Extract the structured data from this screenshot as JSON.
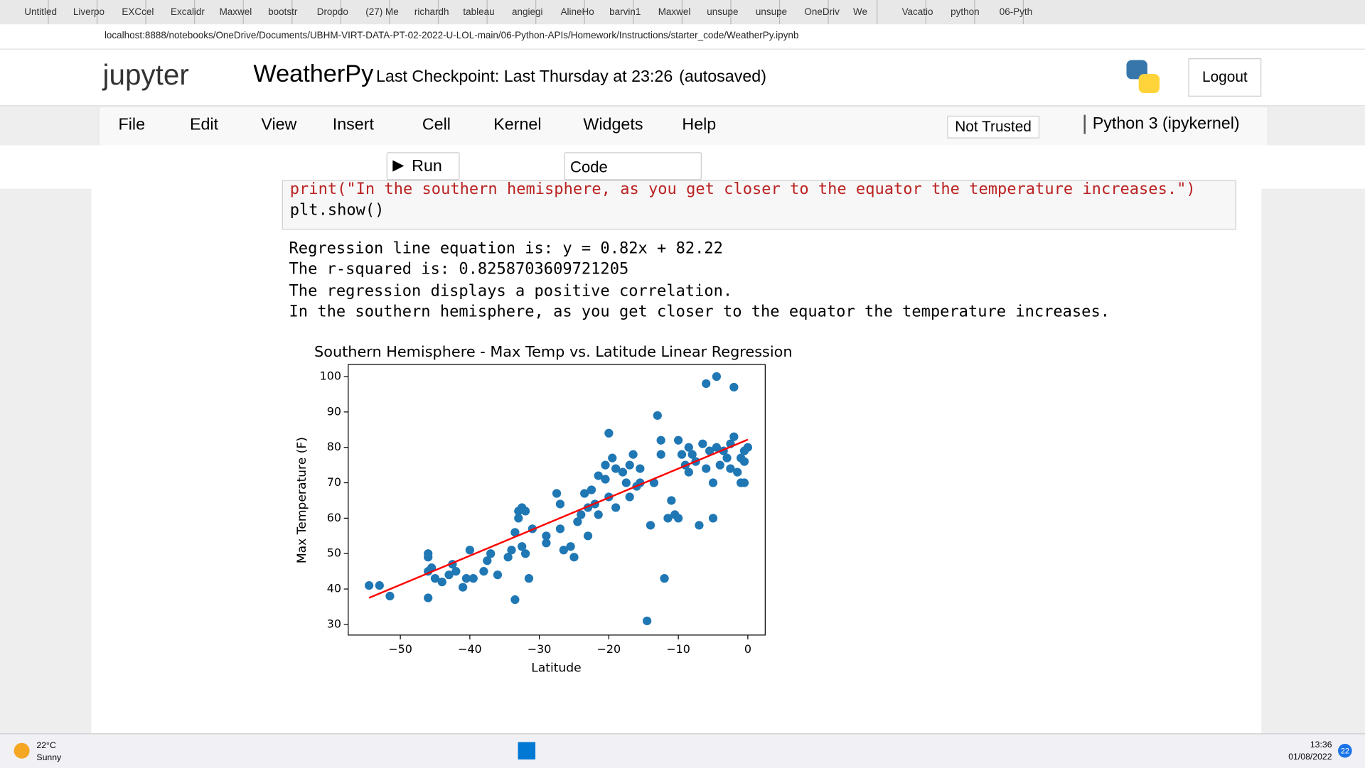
{
  "browser": {
    "tabs": [
      "Untitled",
      "Liverpo",
      "EXCcel",
      "Excalidr",
      "Maxwel",
      "bootstr",
      "Dropdo",
      "(27) Me",
      "richardh",
      "tableau",
      "angiegi",
      "AlineHo",
      "barvin1",
      "Maxwel",
      "unsupe",
      "unsupe",
      "OneDriv",
      "We",
      "Vacatio",
      "python",
      "06-Pyth"
    ],
    "url": "localhost:8888/notebooks/OneDrive/Documents/UBHM-VIRT-DATA-PT-02-2022-U-LOL-main/06-Python-APIs/Homework/Instructions/starter_code/WeatherPy.ipynb"
  },
  "jupyter": {
    "logo": "jupyter",
    "notebook": "WeatherPy",
    "checkpoint": "Last Checkpoint: Last Thursday at 23:26",
    "autosaved": "(autosaved)",
    "logout": "Logout",
    "menu": [
      "File",
      "Edit",
      "View",
      "Insert",
      "Cell",
      "Kernel",
      "Widgets",
      "Help"
    ],
    "trust": "Not Trusted",
    "kernel": "Python 3 (ipykernel)",
    "run": "Run",
    "cell_type": "Code"
  },
  "cell": {
    "code": [
      "print(\"In the southern hemisphere, as you get closer to the equator the temperature increases.\")",
      "plt.show()"
    ],
    "output": [
      "Regression line equation is: y = 0.82x + 82.22",
      "The r-squared is: 0.8258703609721205",
      "The regression displays a positive correlation.",
      "In the southern hemisphere, as you get closer to the equator the temperature increases."
    ]
  },
  "chart_data": {
    "type": "scatter",
    "title": "Southern Hemisphere - Max Temp vs. Latitude Linear Regression",
    "x_label": "Latitude",
    "y_label": "Max Temperature (F)",
    "color": "#1f77b4",
    "x": [
      -54.5,
      -53,
      -51.5,
      -46,
      -46,
      -46,
      -45.5,
      -45,
      -46,
      -44,
      -43,
      -42.5,
      -42,
      -41,
      -40.5,
      -40,
      -39.5,
      -38,
      -37.5,
      -37,
      -36,
      -34.5,
      -34,
      -33.5,
      -33.5,
      -33,
      -33,
      -32.5,
      -32,
      -32.5,
      -32,
      -31.5,
      -31,
      -29,
      -29,
      -27.5,
      -27,
      -27,
      -26.5,
      -25.5,
      -25,
      -24.5,
      -24,
      -23.5,
      -23,
      -23,
      -22.5,
      -22,
      -21.5,
      -21.5,
      -20.5,
      -20.5,
      -20,
      -20,
      -19.5,
      -19,
      -19,
      -18,
      -17.5,
      -17,
      -17,
      -16.5,
      -16,
      -15.5,
      -15.5,
      -14.5,
      -14,
      -13.5,
      -13,
      -12.5,
      -12.5,
      -12,
      -11.5,
      -11,
      -10.5,
      -10,
      -10,
      -9.5,
      -9,
      -8.5,
      -8.5,
      -8,
      -7.5,
      -7,
      -6.5,
      -6,
      -6,
      -5.5,
      -5,
      -5,
      -4.5,
      -4.5,
      -4,
      -3.5,
      -3,
      -2.5,
      -2.5,
      -2,
      -2,
      -1.5,
      -1,
      -1,
      -0.5,
      -0.5,
      0,
      -0.5
    ],
    "values": [
      41,
      41,
      38,
      45,
      49,
      50,
      46,
      43,
      37.5,
      42,
      44,
      47,
      45,
      40.5,
      43,
      51,
      43,
      45,
      48,
      50,
      44,
      49,
      51,
      37,
      56,
      60,
      62,
      63,
      62,
      52,
      50,
      43,
      57,
      55,
      53,
      67,
      64,
      57,
      51,
      52,
      49,
      59,
      61,
      67,
      63,
      55,
      68,
      64,
      61,
      72,
      75,
      71,
      66,
      84,
      77,
      74,
      63,
      73,
      70,
      75,
      66,
      78,
      69,
      70,
      74,
      31,
      58,
      70,
      89,
      82,
      78,
      43,
      60,
      65,
      61,
      60,
      82,
      78,
      75,
      73,
      80,
      78,
      76,
      58,
      81,
      74,
      98,
      79,
      70,
      60,
      100,
      80,
      75,
      79,
      77,
      81,
      74,
      83,
      97,
      73,
      77,
      70,
      76,
      70,
      80,
      79
    ],
    "fit_line": {
      "x": [
        -54.5,
        0
      ],
      "values": [
        37.5,
        82.2
      ],
      "color": "red"
    },
    "xlim": [
      -57.5,
      2.5
    ],
    "ylim": [
      27,
      103.4
    ],
    "xticks": [
      {
        "value": -50,
        "label": "−50"
      },
      {
        "value": -40,
        "label": "−40"
      },
      {
        "value": -30,
        "label": "−30"
      },
      {
        "value": -20,
        "label": "−20"
      },
      {
        "value": -10,
        "label": "−10"
      },
      0
    ],
    "yticks": [
      30,
      40,
      50,
      60,
      70,
      80,
      90,
      100
    ],
    "grid": false
  },
  "taskbar": {
    "temp": "22°C",
    "weather": "Sunny",
    "time": "13:36",
    "date": "01/08/2022",
    "badge": "22"
  }
}
